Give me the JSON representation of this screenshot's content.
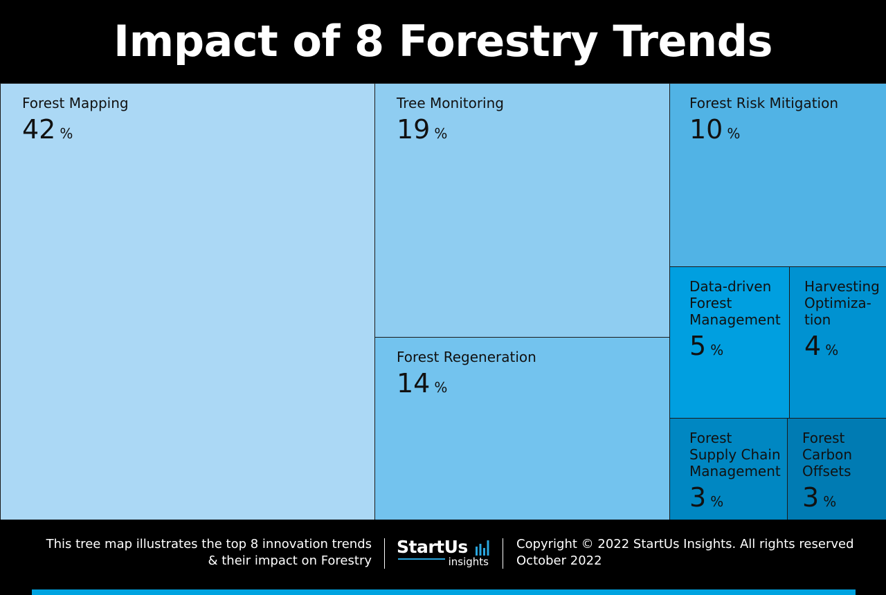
{
  "title": "Impact of 8 Forestry Trends",
  "chart_data": {
    "type": "treemap",
    "unit": "%",
    "items": [
      {
        "label": "Forest Mapping",
        "value": 42,
        "color": "#abd8f5"
      },
      {
        "label": "Tree Monitoring",
        "value": 19,
        "color": "#8fcdf1"
      },
      {
        "label": "Forest Regeneration",
        "value": 14,
        "color": "#73c3ee"
      },
      {
        "label": "Forest Risk Mitigation",
        "value": 10,
        "color": "#51b3e5"
      },
      {
        "label": "Data-driven\nForest\nManagement",
        "value": 5,
        "color": "#009fe0"
      },
      {
        "label": "Harvesting\nOptimiza-\ntion",
        "value": 4,
        "color": "#0092d1"
      },
      {
        "label": "Forest\nSupply Chain\nManagement",
        "value": 3,
        "color": "#0087c2"
      },
      {
        "label": "Forest\nCarbon\nOffsets",
        "value": 3,
        "color": "#007bb3"
      }
    ]
  },
  "footer": {
    "description_line1": "This tree map illustrates the top 8 innovation trends",
    "description_line2": "& their impact on Forestry",
    "logo_main": "StartUs",
    "logo_sub": "insights",
    "copyright": "Copyright © 2022 StartUs Insights. All rights reserved",
    "date": "October 2022"
  },
  "colors": {
    "background": "#000000",
    "text_light": "#ffffff",
    "text_dark": "#111111",
    "accent": "#2aa7e0",
    "bottom_bar": "#00a3e0"
  }
}
